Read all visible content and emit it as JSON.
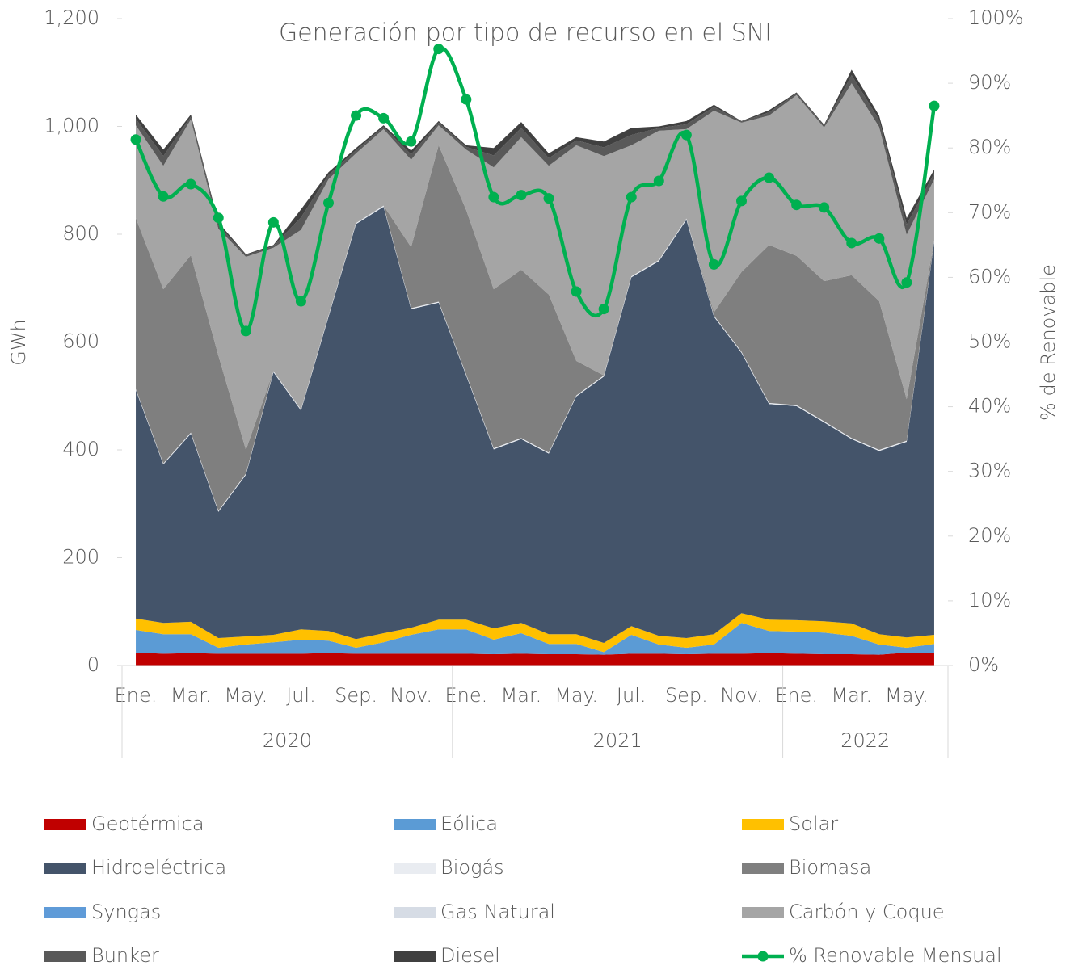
{
  "chart_data": {
    "type": "stacked_area",
    "title": "Generación por tipo de recurso en el  SNI",
    "y_label": "GWh",
    "y2_label": "% de Renovable",
    "categories": [
      "Ene.",
      null,
      "Mar.",
      null,
      "May.",
      null,
      "Jul.",
      null,
      "Sep.",
      null,
      "Nov.",
      null,
      "Ene.",
      null,
      "Mar.",
      null,
      "May.",
      null,
      "Jul.",
      null,
      "Sep.",
      null,
      "Nov.",
      null,
      "Ene.",
      null,
      "Mar.",
      null,
      "May.",
      null
    ],
    "x_groups": [
      {
        "label": "2020",
        "from": 0,
        "to": 11
      },
      {
        "label": "2021",
        "from": 12,
        "to": 23
      },
      {
        "label": "2022",
        "from": 24,
        "to": 29
      }
    ],
    "ylim": [
      0,
      1200
    ],
    "yticks": [
      0,
      200,
      400,
      600,
      800,
      {
        "value": 1000,
        "label": "1,000"
      },
      {
        "value": 1200,
        "label": "1,200"
      }
    ],
    "y2lim": [
      0,
      100
    ],
    "y2ticks": [
      {
        "value": 0,
        "label": "0%"
      },
      {
        "value": 10,
        "label": "10%"
      },
      {
        "value": 20,
        "label": "20%"
      },
      {
        "value": 30,
        "label": "30%"
      },
      {
        "value": 40,
        "label": "40%"
      },
      {
        "value": 50,
        "label": "50%"
      },
      {
        "value": 60,
        "label": "60%"
      },
      {
        "value": 70,
        "label": "70%"
      },
      {
        "value": 80,
        "label": "80%"
      },
      {
        "value": 90,
        "label": "90%"
      },
      {
        "value": 100,
        "label": "100%"
      }
    ],
    "series": [
      {
        "name": "Geotérmica",
        "color": "#c00000",
        "values": [
          24,
          22,
          23,
          22,
          22,
          22,
          22,
          23,
          22,
          22,
          22,
          22,
          22,
          21,
          22,
          21,
          21,
          20,
          22,
          22,
          21,
          22,
          22,
          23,
          22,
          21,
          21,
          20,
          24,
          24
        ]
      },
      {
        "name": "Eólica",
        "color": "#5b9bd5",
        "values": [
          42,
          36,
          35,
          11,
          17,
          21,
          26,
          23,
          11,
          21,
          35,
          45,
          45,
          27,
          38,
          19,
          19,
          5,
          35,
          17,
          12,
          17,
          57,
          41,
          41,
          40,
          34,
          19,
          9,
          16
        ]
      },
      {
        "name": "Solar",
        "color": "#ffc000",
        "values": [
          21,
          21,
          23,
          18,
          15,
          14,
          19,
          18,
          16,
          17,
          13,
          18,
          18,
          21,
          19,
          18,
          18,
          17,
          16,
          16,
          18,
          19,
          18,
          21,
          21,
          21,
          23,
          19,
          19,
          17
        ]
      },
      {
        "name": "Hidroeléctrica",
        "color": "#44546a",
        "values": [
          424,
          294,
          349,
          234,
          300,
          487,
          406,
          583,
          770,
          791,
          591,
          588,
          453,
          332,
          341,
          335,
          441,
          494,
          647,
          695,
          776,
          589,
          483,
          400,
          397,
          369,
          342,
          340,
          363,
          729
        ]
      },
      {
        "name": "Biogás",
        "color": "#e9ecf1",
        "values": [
          2,
          2,
          2,
          2,
          2,
          2,
          2,
          2,
          2,
          2,
          2,
          2,
          2,
          2,
          2,
          2,
          2,
          2,
          2,
          2,
          2,
          2,
          2,
          2,
          2,
          2,
          2,
          2,
          2,
          2
        ]
      },
      {
        "name": "Biomasa",
        "color": "#7f7f7f",
        "values": [
          317,
          323,
          329,
          288,
          44,
          0,
          0,
          0,
          1,
          0,
          113,
          290,
          305,
          295,
          312,
          293,
          64,
          0,
          0,
          0,
          0,
          6,
          148,
          293,
          277,
          260,
          302,
          276,
          77,
          0
        ]
      },
      {
        "name": "Syngas",
        "color": "#5f9bd8",
        "values": [
          0,
          0,
          0,
          0,
          0,
          0,
          0,
          0,
          0,
          0,
          0,
          0,
          0,
          0,
          0,
          0,
          0,
          0,
          0,
          0,
          0,
          0,
          0,
          0,
          0,
          0,
          0,
          0,
          0,
          0
        ]
      },
      {
        "name": "Gas Natural",
        "color": "#d6dce5",
        "values": [
          0,
          0,
          0,
          0,
          0,
          0,
          0,
          0,
          0,
          0,
          0,
          0,
          0,
          0,
          0,
          0,
          0,
          0,
          0,
          0,
          0,
          0,
          0,
          0,
          0,
          0,
          0,
          0,
          0,
          0
        ]
      },
      {
        "name": "Carbón y Coque",
        "color": "#a5a5a5",
        "values": [
          172,
          229,
          252,
          235,
          358,
          229,
          333,
          253,
          128,
          142,
          162,
          37,
          112,
          226,
          246,
          239,
          400,
          407,
          243,
          240,
          166,
          374,
          277,
          240,
          298,
          285,
          356,
          323,
          305,
          114
        ]
      },
      {
        "name": "Bunker",
        "color": "#595959",
        "values": [
          12,
          18,
          5,
          7,
          3,
          3,
          23,
          8,
          6,
          4,
          10,
          5,
          5,
          22,
          17,
          14,
          9,
          16,
          19,
          5,
          9,
          7,
          2,
          6,
          3,
          3,
          15,
          13,
          19,
          11
        ]
      },
      {
        "name": "Diesel",
        "color": "#404040",
        "values": [
          8,
          12,
          4,
          5,
          2,
          2,
          15,
          5,
          4,
          3,
          7,
          3,
          3,
          14,
          11,
          9,
          6,
          11,
          13,
          3,
          6,
          4,
          1,
          4,
          2,
          2,
          10,
          8,
          12,
          7
        ]
      },
      {
        "name": "% Renovable Mensual",
        "color": "#00b050",
        "axis": "y2",
        "type": "line",
        "values": [
          81.3,
          72.5,
          74.4,
          69.2,
          51.7,
          68.5,
          56.3,
          71.5,
          85.0,
          84.6,
          81.0,
          95.3,
          87.5,
          72.4,
          72.7,
          72.2,
          57.8,
          55.1,
          72.4,
          74.9,
          82.0,
          62.0,
          71.8,
          75.4,
          71.2,
          70.8,
          65.3,
          66.0,
          59.2,
          86.5
        ]
      }
    ]
  }
}
